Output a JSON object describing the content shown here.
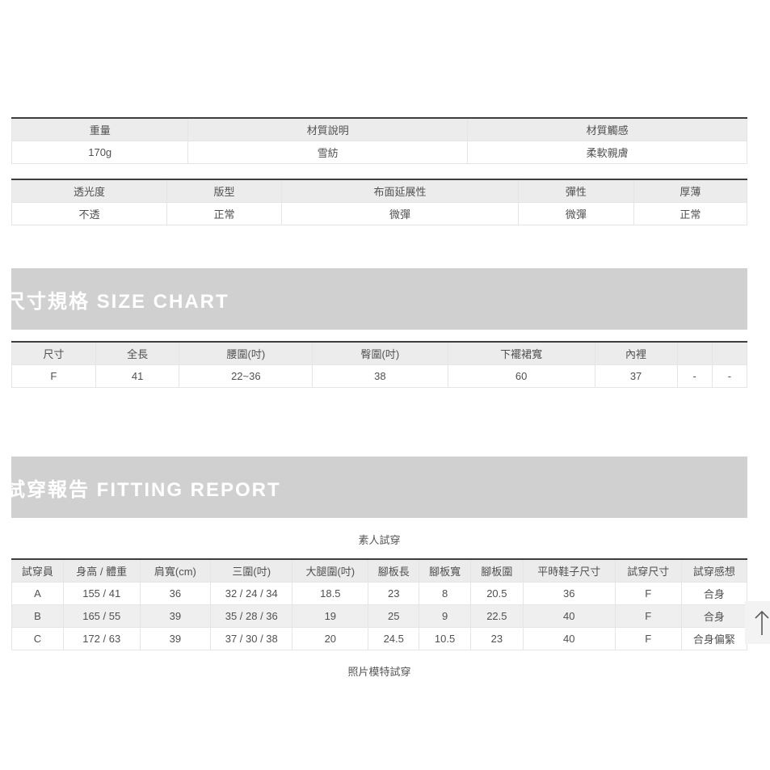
{
  "spec_table_1": {
    "headers": [
      "重量",
      "材質說明",
      "材質觸感"
    ],
    "rows": [
      [
        "170g",
        "雪紡",
        "柔軟親膚"
      ]
    ],
    "widths": [
      24,
      38,
      38
    ]
  },
  "spec_table_2": {
    "headers": [
      "透光度",
      "版型",
      "布面延展性",
      "彈性",
      "厚薄"
    ],
    "rows": [
      [
        "不透",
        "正常",
        "微彈",
        "微彈",
        "正常"
      ]
    ],
    "widths": [
      21.1,
      15.6,
      32.2,
      15.7,
      15.4
    ]
  },
  "size_chart": {
    "banner_title": "尺寸規格 SIZE CHART",
    "table": {
      "headers": [
        "尺寸",
        "全長",
        "腰圍(吋)",
        "臀圍(吋)",
        "下襬裙寬",
        "內裡",
        "",
        ""
      ],
      "rows": [
        [
          "F",
          "41",
          "22~36",
          "38",
          "60",
          "37",
          "-",
          "-"
        ]
      ],
      "widths": [
        11.4,
        11.4,
        18.1,
        18.4,
        20.0,
        11.2,
        4.75,
        4.75
      ]
    }
  },
  "fitting_report": {
    "banner_title": "試穿報告 FITTING REPORT",
    "section_label": "素人試穿",
    "table": {
      "headers": [
        "試穿員",
        "身高 / 體重",
        "肩寬(cm)",
        "三圍(吋)",
        "大腿圍(吋)",
        "腳板長",
        "腳板寬",
        "腳板圍",
        "平時鞋子尺寸",
        "試穿尺寸",
        "試穿感想"
      ],
      "rows": [
        [
          "A",
          "155 / 41",
          "36",
          "32 / 24 / 34",
          "18.5",
          "23",
          "8",
          "20.5",
          "36",
          "F",
          "合身"
        ],
        [
          "B",
          "165 / 55",
          "39",
          "35 / 28 / 36",
          "19",
          "25",
          "9",
          "22.5",
          "40",
          "F",
          "合身"
        ],
        [
          "C",
          "172 / 63",
          "39",
          "37 / 30 / 38",
          "20",
          "24.5",
          "10.5",
          "23",
          "40",
          "F",
          "合身偏緊"
        ]
      ],
      "widths": [
        7.0,
        10.4,
        9.6,
        11.1,
        10.3,
        6.9,
        7.0,
        7.1,
        12.5,
        9.0,
        8.9
      ],
      "zebra_rows": [
        1
      ]
    },
    "footer_label": "照片模特試穿"
  },
  "colors": {
    "banner_bg": "#d0d0d0",
    "banner_text": "#ffffff",
    "table_header_bg": "#ececec",
    "zebra_row_bg": "#efefef",
    "table_top_border": "#3e3e3e",
    "text": "#505050"
  }
}
